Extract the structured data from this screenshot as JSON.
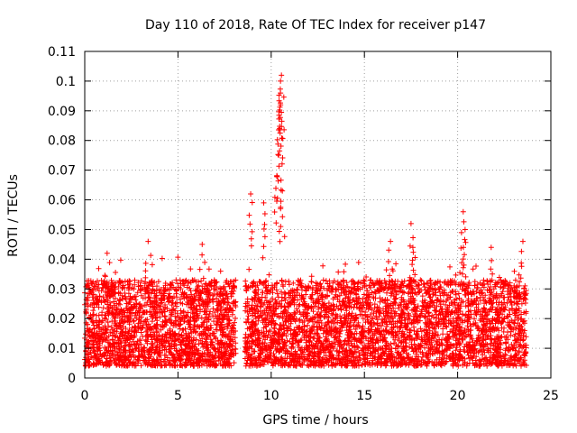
{
  "chart_data": {
    "type": "scatter",
    "title": "Day 110 of 2018, Rate Of TEC Index for receiver p147",
    "xlabel": "GPS time / hours",
    "ylabel": "ROTI / TECUs",
    "xlim": [
      0,
      25
    ],
    "ylim": [
      0,
      0.11
    ],
    "xticks": [
      "0",
      "5",
      "10",
      "15",
      "20",
      "25"
    ],
    "yticks": [
      "0",
      "0.01",
      "0.02",
      "0.03",
      "0.04",
      "0.05",
      "0.06",
      "0.07",
      "0.08",
      "0.09",
      "0.1",
      "0.11"
    ],
    "grid": true,
    "marker": "+",
    "color": "#ff0000",
    "series": [
      {
        "name": "ROTI",
        "data_range_hours": [
          0,
          23.7
        ],
        "typical_range_tecu": [
          0.004,
          0.033
        ],
        "gap_hours": [
          8.1,
          8.6
        ],
        "peaks": [
          {
            "x": 1.2,
            "y": 0.042
          },
          {
            "x": 3.4,
            "y": 0.046
          },
          {
            "x": 6.3,
            "y": 0.045
          },
          {
            "x": 8.9,
            "y": 0.062
          },
          {
            "x": 9.6,
            "y": 0.059
          },
          {
            "x": 10.3,
            "y": 0.068
          },
          {
            "x": 10.4,
            "y": 0.075
          },
          {
            "x": 10.45,
            "y": 0.084
          },
          {
            "x": 10.5,
            "y": 0.092
          },
          {
            "x": 10.5,
            "y": 0.096
          },
          {
            "x": 10.55,
            "y": 0.102
          },
          {
            "x": 10.5,
            "y": 0.1
          },
          {
            "x": 10.6,
            "y": 0.063
          },
          {
            "x": 16.4,
            "y": 0.046
          },
          {
            "x": 17.5,
            "y": 0.052
          },
          {
            "x": 17.6,
            "y": 0.044
          },
          {
            "x": 20.3,
            "y": 0.056
          },
          {
            "x": 20.4,
            "y": 0.05
          },
          {
            "x": 21.8,
            "y": 0.044
          },
          {
            "x": 23.5,
            "y": 0.046
          }
        ]
      }
    ]
  }
}
